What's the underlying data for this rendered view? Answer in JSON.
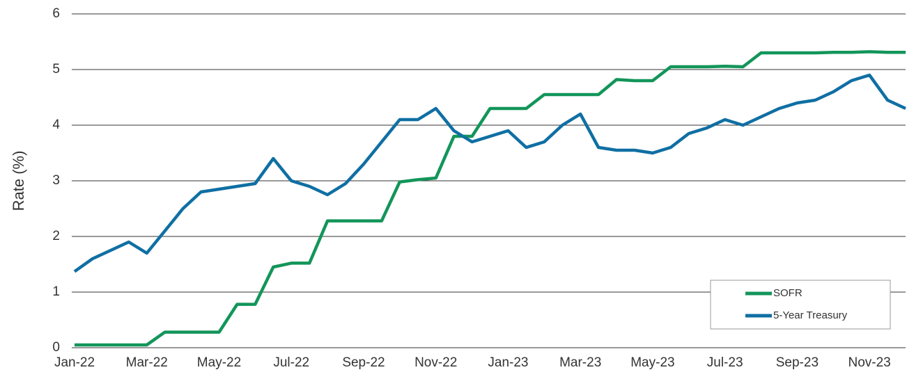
{
  "chart_data": {
    "type": "line",
    "ylabel": "Rate (%)",
    "categories": [
      "Jan-22",
      null,
      null,
      null,
      "Mar-22",
      null,
      null,
      null,
      "May-22",
      null,
      null,
      null,
      "Jul-22",
      null,
      null,
      null,
      "Sep-22",
      null,
      null,
      null,
      "Nov-22",
      null,
      null,
      null,
      "Jan-23",
      null,
      null,
      null,
      "Mar-23",
      null,
      null,
      null,
      "May-23",
      null,
      null,
      null,
      "Jul-23",
      null,
      null,
      null,
      "Sep-23",
      null,
      null,
      null,
      "Nov-23",
      null,
      null
    ],
    "series": [
      {
        "name": "SOFR",
        "color": "#13955a",
        "values": [
          0.05,
          0.05,
          0.05,
          0.05,
          0.05,
          0.28,
          0.28,
          0.28,
          0.28,
          0.78,
          0.78,
          1.45,
          1.52,
          1.52,
          2.28,
          2.28,
          2.28,
          2.28,
          2.98,
          3.02,
          3.05,
          3.8,
          3.8,
          4.3,
          4.3,
          4.3,
          4.55,
          4.55,
          4.55,
          4.55,
          4.82,
          4.8,
          4.8,
          5.05,
          5.05,
          5.05,
          5.06,
          5.05,
          5.3,
          5.3,
          5.3,
          5.3,
          5.31,
          5.31,
          5.32,
          5.31,
          5.31
        ]
      },
      {
        "name": "5-Year Treasury",
        "color": "#0f6fa3",
        "values": [
          1.37,
          1.6,
          1.75,
          1.9,
          1.7,
          2.1,
          2.5,
          2.8,
          2.85,
          2.9,
          2.95,
          3.4,
          3.0,
          2.9,
          2.75,
          2.95,
          3.3,
          3.7,
          4.1,
          4.1,
          4.3,
          3.9,
          3.7,
          3.8,
          3.9,
          3.6,
          3.7,
          4.0,
          4.2,
          3.6,
          3.55,
          3.55,
          3.5,
          3.6,
          3.85,
          3.95,
          4.1,
          4.0,
          4.15,
          4.3,
          4.4,
          4.45,
          4.6,
          4.8,
          4.9,
          4.45,
          4.3
        ]
      }
    ],
    "ylim": [
      0,
      6
    ],
    "yticks": [
      0,
      1,
      2,
      3,
      4,
      5,
      6
    ],
    "grid": true,
    "legend": "lower right"
  }
}
